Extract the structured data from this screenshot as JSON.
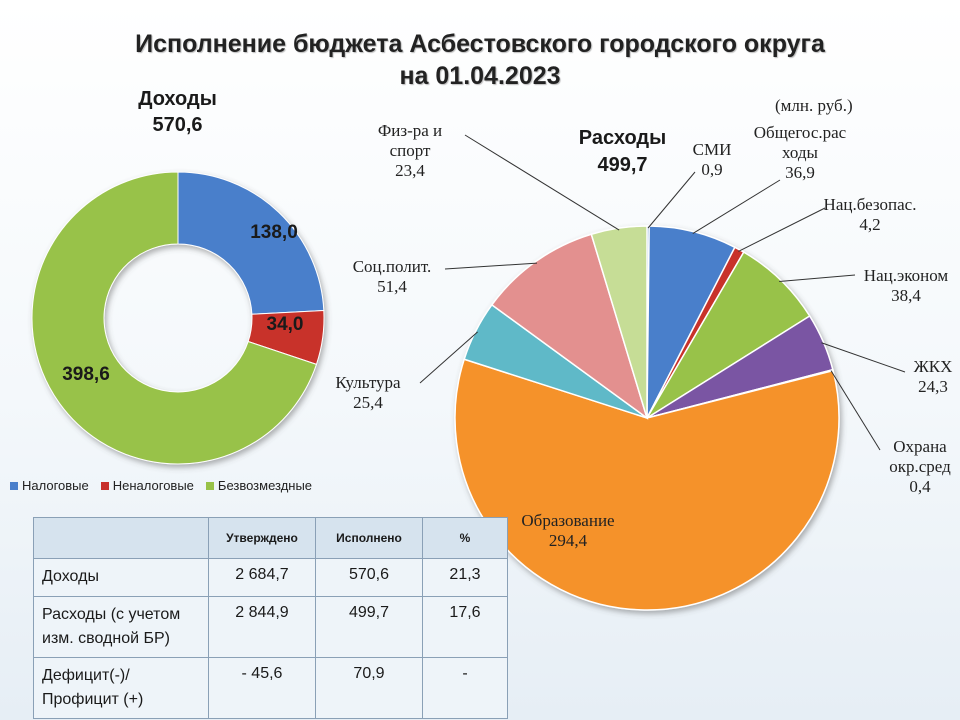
{
  "title": {
    "line1": "Исполнение бюджета Асбестовского городского округа",
    "line2": "на 01.04.2023"
  },
  "units": "(млн. руб.)",
  "colors": {
    "blue": "#4a7fcb",
    "red": "#c8302c",
    "green": "#98c248",
    "purple": "#7a55a3",
    "teal": "#5fb9c8",
    "orange": "#f5922a",
    "pink": "#e3908f",
    "light_green": "#c6dd96"
  },
  "chart_data": [
    {
      "type": "pie",
      "variant": "donut",
      "title": "Доходы",
      "total": "570,6",
      "slices": [
        {
          "name": "Налоговые",
          "value": 138.0,
          "label": "138,0",
          "color": "#4a7fcb"
        },
        {
          "name": "Неналоговые",
          "value": 34.0,
          "label": "34,0",
          "color": "#c8302c"
        },
        {
          "name": "Безвозмездные",
          "value": 398.6,
          "label": "398,6",
          "color": "#98c248"
        }
      ],
      "legend_position": "bottom"
    },
    {
      "type": "pie",
      "title": "Расходы",
      "total": "499,7",
      "slices": [
        {
          "name": "СМИ",
          "value": 0.9,
          "label": "0,9",
          "color": "#4a7fcb"
        },
        {
          "name": "Общегос.расходы",
          "name_lines": [
            "Общегос.рас",
            "ходы"
          ],
          "value": 36.9,
          "label": "36,9",
          "color": "#4a7fcb"
        },
        {
          "name": "Нац.безопас.",
          "name_lines": [
            "Нац.безопас."
          ],
          "value": 4.2,
          "label": "4,2",
          "color": "#c8302c"
        },
        {
          "name": "Нац.эконом",
          "name_lines": [
            "Нац.эконом"
          ],
          "value": 38.4,
          "label": "38,4",
          "color": "#98c248"
        },
        {
          "name": "ЖКХ",
          "name_lines": [
            "ЖКХ"
          ],
          "value": 24.3,
          "label": "24,3",
          "color": "#7a55a3"
        },
        {
          "name": "Охрана окр.сред",
          "name_lines": [
            "Охрана",
            "окр.сред"
          ],
          "value": 0.4,
          "label": "0,4",
          "color": "#5fb9c8"
        },
        {
          "name": "Образование",
          "name_lines": [
            "Образование"
          ],
          "value": 294.4,
          "label": "294,4",
          "color": "#f5922a"
        },
        {
          "name": "Культура",
          "name_lines": [
            "Культура"
          ],
          "value": 25.4,
          "label": "25,4",
          "color": "#5fb9c8"
        },
        {
          "name": "Соц.полит.",
          "name_lines": [
            "Соц.полит."
          ],
          "value": 51.4,
          "label": "51,4",
          "color": "#e3908f"
        },
        {
          "name": "Физ-ра и спорт",
          "name_lines": [
            "Физ-ра и",
            "спорт"
          ],
          "value": 23.4,
          "label": "23,4",
          "color": "#c6dd96"
        }
      ]
    }
  ],
  "table": {
    "headers": [
      "",
      "Утверждено",
      "Исполнено",
      "%"
    ],
    "rows": [
      {
        "label": "Доходы",
        "approved": "2 684,7",
        "executed": "570,6",
        "percent": "21,3"
      },
      {
        "label": "Расходы (с учетом изм. сводной БР)",
        "approved": "2 844,9",
        "executed": "499,7",
        "percent": "17,6"
      },
      {
        "label": "Дефицит(-)/ Профицит (+)",
        "approved": "- 45,6",
        "executed": "70,9",
        "percent": "-"
      }
    ]
  }
}
